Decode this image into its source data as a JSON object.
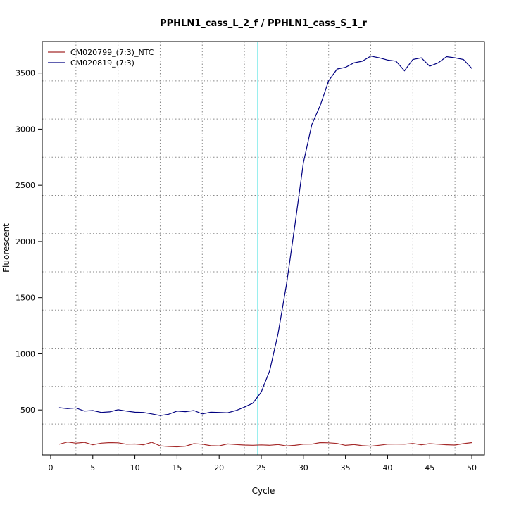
{
  "chart_data": {
    "type": "line",
    "title": "PPHLN1_cass_L_2_f / PPHLN1_cass_S_1_r",
    "xlabel": "Cycle",
    "ylabel": "Fluorescent",
    "xlim": [
      -1,
      51.5
    ],
    "ylim": [
      100,
      3780
    ],
    "x_ticks": [
      0,
      5,
      10,
      15,
      20,
      25,
      30,
      35,
      40,
      45,
      50
    ],
    "y_ticks": [
      500,
      1000,
      1500,
      2000,
      2500,
      3000,
      3500
    ],
    "x_grid": [
      3,
      8,
      13,
      18,
      23,
      28,
      33,
      38,
      43,
      48
    ],
    "y_grid": [
      375,
      710,
      1050,
      1390,
      1730,
      2070,
      2410,
      2750,
      3090,
      3430
    ],
    "grid": true,
    "legend_position": "top-left",
    "threshold_x": 24.6,
    "threshold_color": "#40E0E0",
    "x": [
      1,
      2,
      3,
      4,
      5,
      6,
      7,
      8,
      9,
      10,
      11,
      12,
      13,
      14,
      15,
      16,
      17,
      18,
      19,
      20,
      21,
      22,
      23,
      24,
      25,
      26,
      27,
      28,
      29,
      30,
      31,
      32,
      33,
      34,
      35,
      36,
      37,
      38,
      39,
      40,
      41,
      42,
      43,
      44,
      45,
      46,
      47,
      48,
      49,
      50
    ],
    "series": [
      {
        "name": "CM020799_(7:3)_NTC",
        "color": "#A52A2A",
        "values": [
          195,
          215,
          205,
          212,
          190,
          205,
          210,
          208,
          195,
          197,
          190,
          212,
          180,
          175,
          172,
          178,
          200,
          195,
          182,
          180,
          198,
          192,
          188,
          186,
          189,
          186,
          192,
          180,
          185,
          195,
          196,
          210,
          208,
          202,
          185,
          192,
          182,
          178,
          186,
          195,
          196,
          195,
          202,
          190,
          200,
          195,
          190,
          188,
          200,
          210
        ]
      },
      {
        "name": "CM020819_(7:3)",
        "color": "#000080",
        "values": [
          520,
          512,
          518,
          490,
          495,
          478,
          483,
          502,
          490,
          480,
          478,
          465,
          450,
          462,
          490,
          485,
          495,
          465,
          480,
          478,
          475,
          495,
          525,
          560,
          660,
          850,
          1180,
          1620,
          2150,
          2700,
          3040,
          3210,
          3430,
          3535,
          3550,
          3590,
          3605,
          3650,
          3635,
          3615,
          3605,
          3520,
          3620,
          3635,
          3560,
          3590,
          3645,
          3635,
          3620,
          3540
        ]
      }
    ]
  }
}
